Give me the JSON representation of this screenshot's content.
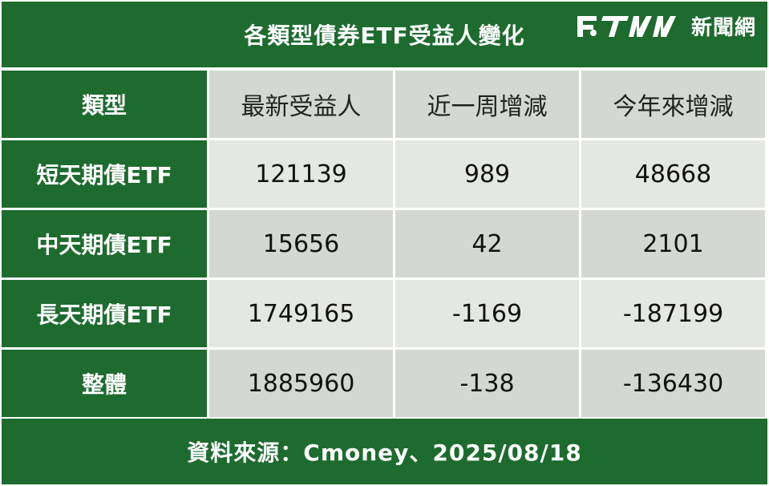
{
  "header": {
    "title": "各類型債券ETF受益人變化",
    "logo_text": "新聞網",
    "brand_color": "#1e6b2f"
  },
  "table": {
    "corner_label": "類型",
    "columns": [
      "最新受益人",
      "近一周增減",
      "今年來增減"
    ],
    "rows": [
      {
        "label": "短天期債ETF",
        "values": [
          "121139",
          "989",
          "48668"
        ]
      },
      {
        "label": "中天期債ETF",
        "values": [
          "15656",
          "42",
          "2101"
        ]
      },
      {
        "label": "長天期債ETF",
        "values": [
          "1749165",
          "-1169",
          "-187199"
        ]
      },
      {
        "label": "整體",
        "values": [
          "1885960",
          "-138",
          "-136430"
        ]
      }
    ]
  },
  "footer": {
    "source": "資料來源：Cmoney、2025/08/18"
  }
}
